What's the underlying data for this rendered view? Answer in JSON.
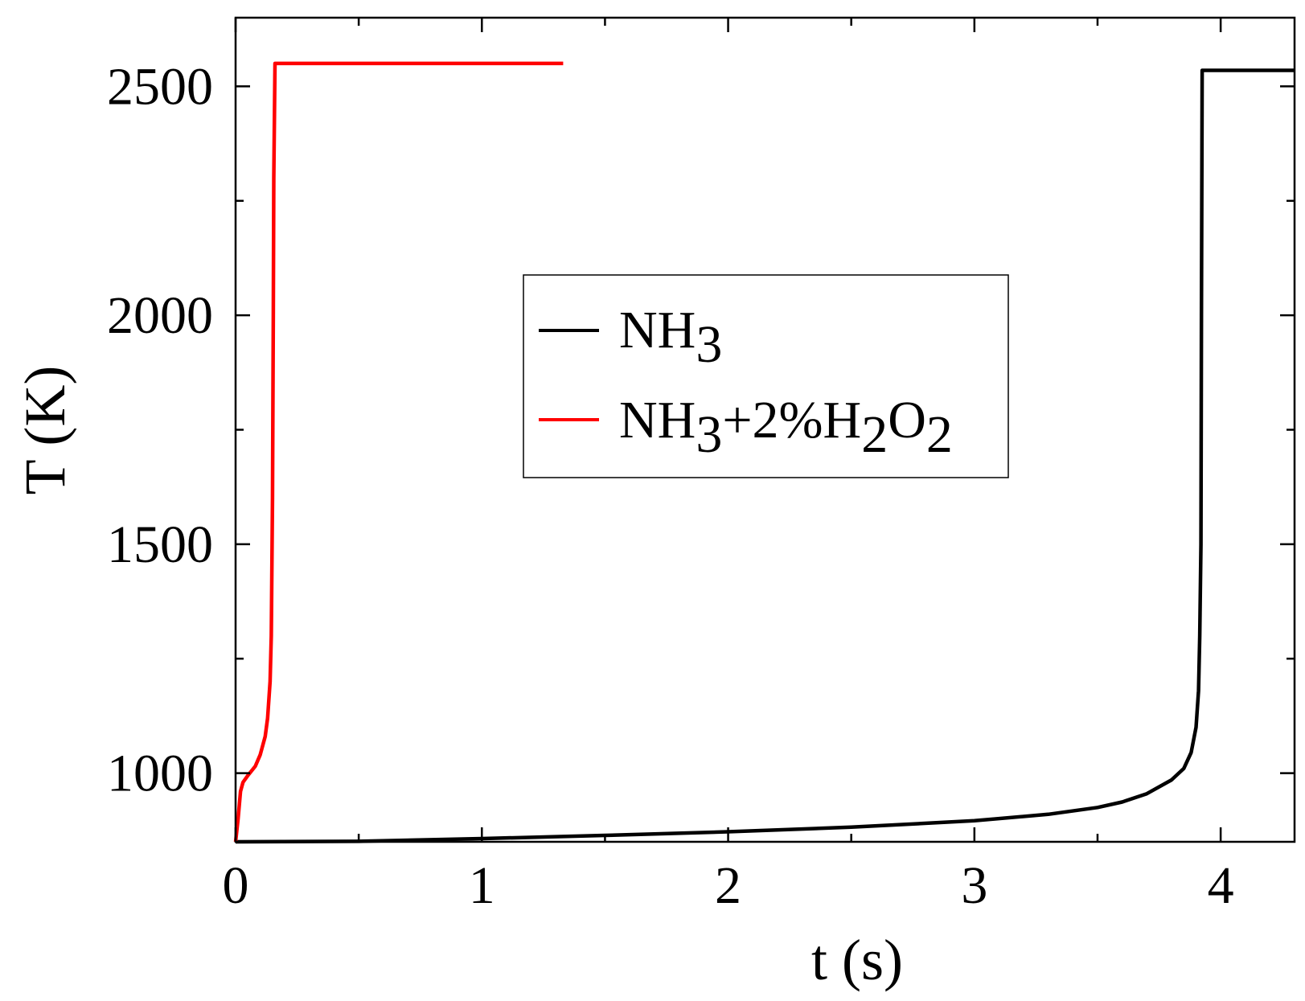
{
  "chart_data": {
    "type": "line",
    "xlabel": "t (s)",
    "ylabel": "T (K)",
    "xlim": [
      0,
      4.3
    ],
    "ylim": [
      850,
      2650
    ],
    "x_ticks": [
      "0",
      "1",
      "2",
      "3",
      "4"
    ],
    "y_ticks": [
      "1000",
      "1500",
      "2000",
      "2500"
    ],
    "grid": false,
    "legend_position": "center",
    "series": [
      {
        "name": "NH3",
        "legend_base": "NH",
        "legend_sub": "3",
        "color": "#000000",
        "x": [
          0,
          0.5,
          1.0,
          1.5,
          2.0,
          2.5,
          3.0,
          3.3,
          3.5,
          3.6,
          3.7,
          3.8,
          3.85,
          3.88,
          3.9,
          3.91,
          3.915,
          3.92,
          3.922,
          3.925,
          4.3
        ],
        "y": [
          850,
          851,
          857,
          864,
          872,
          882,
          896,
          910,
          925,
          937,
          955,
          985,
          1010,
          1045,
          1100,
          1180,
          1300,
          1500,
          2000,
          2535,
          2535
        ]
      },
      {
        "name": "NH3+2%H2O2",
        "legend_parts": [
          "NH",
          "3",
          "+2%H",
          "2",
          "O",
          "2"
        ],
        "color": "#ff0000",
        "x": [
          0,
          0.01,
          0.02,
          0.03,
          0.05,
          0.08,
          0.1,
          0.12,
          0.13,
          0.14,
          0.145,
          0.15,
          0.153,
          0.155,
          0.16,
          1.33
        ],
        "y": [
          850,
          900,
          960,
          980,
          995,
          1015,
          1040,
          1080,
          1120,
          1200,
          1300,
          1600,
          2000,
          2300,
          2550,
          2550
        ]
      }
    ]
  }
}
